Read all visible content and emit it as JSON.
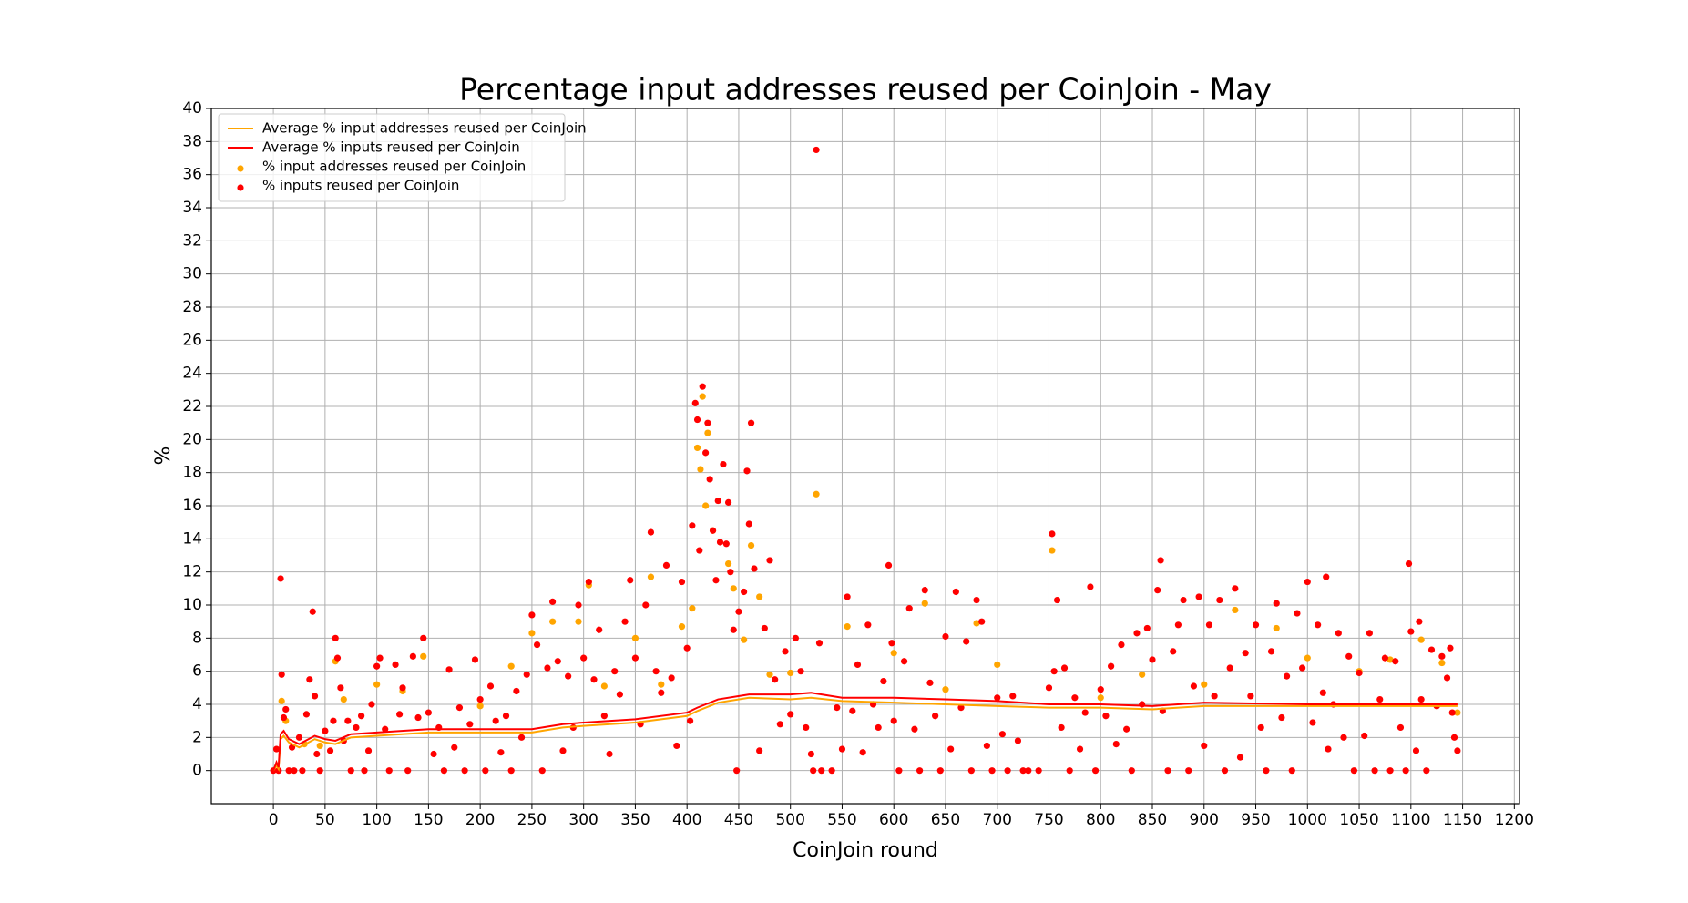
{
  "chart_data": {
    "type": "scatter",
    "title": "Percentage input addresses reused per CoinJoin - May",
    "x_label": "CoinJoin round",
    "y_label": "%",
    "xlim": [
      -60,
      1205
    ],
    "ylim": [
      -2,
      40
    ],
    "xticks": [
      0,
      50,
      100,
      150,
      200,
      250,
      300,
      350,
      400,
      450,
      500,
      550,
      600,
      650,
      700,
      750,
      800,
      850,
      900,
      950,
      1000,
      1050,
      1100,
      1150,
      1200
    ],
    "yticks": [
      0,
      2,
      4,
      6,
      8,
      10,
      12,
      14,
      16,
      18,
      20,
      22,
      24,
      26,
      28,
      30,
      32,
      34,
      36,
      38,
      40
    ],
    "grid": true,
    "legend": "upper-left",
    "series": [
      {
        "name": "Average % input addresses reused per CoinJoin",
        "type": "line",
        "color": "#ffa500",
        "x": [
          0,
          3,
          5,
          7,
          10,
          15,
          25,
          40,
          50,
          60,
          75,
          100,
          150,
          200,
          250,
          280,
          300,
          350,
          400,
          410,
          430,
          460,
          500,
          520,
          550,
          600,
          650,
          700,
          750,
          800,
          850,
          900,
          1000,
          1050,
          1145
        ],
        "values": [
          0,
          0.3,
          0.1,
          1.9,
          2.1,
          1.7,
          1.4,
          1.9,
          1.7,
          1.6,
          2.0,
          2.1,
          2.3,
          2.3,
          2.3,
          2.6,
          2.7,
          2.9,
          3.3,
          3.6,
          4.1,
          4.4,
          4.3,
          4.4,
          4.2,
          4.1,
          4.0,
          3.9,
          3.8,
          3.8,
          3.7,
          3.9,
          3.9,
          3.9,
          3.9
        ]
      },
      {
        "name": "Average % inputs reused per CoinJoin",
        "type": "line",
        "color": "#ff0000",
        "x": [
          0,
          3,
          5,
          7,
          10,
          15,
          25,
          40,
          50,
          60,
          75,
          100,
          150,
          200,
          250,
          280,
          300,
          350,
          400,
          410,
          430,
          460,
          500,
          520,
          550,
          600,
          650,
          700,
          750,
          800,
          850,
          900,
          1000,
          1050,
          1145
        ],
        "values": [
          0,
          0.5,
          0.2,
          2.2,
          2.4,
          1.9,
          1.6,
          2.1,
          1.9,
          1.8,
          2.2,
          2.3,
          2.5,
          2.5,
          2.5,
          2.8,
          2.9,
          3.1,
          3.5,
          3.8,
          4.3,
          4.6,
          4.6,
          4.7,
          4.4,
          4.4,
          4.3,
          4.2,
          4.0,
          4.0,
          3.9,
          4.1,
          4.0,
          4.0,
          4.0
        ]
      },
      {
        "name": "% input addresses reused per CoinJoin",
        "type": "scatter",
        "color": "#ffa500",
        "x": [
          8,
          12,
          30,
          45,
          60,
          68,
          100,
          125,
          145,
          200,
          230,
          250,
          270,
          295,
          305,
          320,
          350,
          365,
          375,
          395,
          405,
          410,
          413,
          415,
          418,
          420,
          425,
          440,
          445,
          455,
          462,
          470,
          480,
          500,
          525,
          555,
          600,
          630,
          650,
          680,
          700,
          753,
          800,
          840,
          900,
          930,
          970,
          1000,
          1050,
          1080,
          1110,
          1130,
          1145
        ],
        "values": [
          4.2,
          3,
          1.6,
          1.5,
          6.6,
          4.3,
          5.2,
          4.8,
          6.9,
          3.9,
          6.3,
          8.3,
          9,
          9,
          11.2,
          5.1,
          8,
          11.7,
          5.2,
          8.7,
          9.8,
          19.5,
          18.2,
          22.6,
          16,
          20.4,
          14.5,
          12.5,
          11,
          7.9,
          13.6,
          10.5,
          5.8,
          5.9,
          16.7,
          8.7,
          7.1,
          10.1,
          4.9,
          8.9,
          6.4,
          13.3,
          4.4,
          5.8,
          5.2,
          9.7,
          8.6,
          6.8,
          6,
          6.7,
          7.9,
          6.5,
          3.5
        ]
      },
      {
        "name": "% inputs reused per CoinJoin",
        "type": "scatter",
        "color": "#ff0000",
        "x": [
          0,
          3,
          5,
          7,
          8,
          10,
          12,
          15,
          18,
          20,
          25,
          28,
          32,
          35,
          38,
          40,
          42,
          45,
          50,
          55,
          58,
          60,
          62,
          65,
          68,
          72,
          75,
          80,
          85,
          88,
          92,
          95,
          100,
          103,
          108,
          112,
          118,
          122,
          125,
          130,
          135,
          140,
          145,
          150,
          155,
          160,
          165,
          170,
          175,
          180,
          185,
          190,
          195,
          200,
          205,
          210,
          215,
          220,
          225,
          230,
          235,
          240,
          245,
          250,
          255,
          260,
          265,
          270,
          275,
          280,
          285,
          290,
          295,
          300,
          305,
          310,
          315,
          320,
          325,
          330,
          335,
          340,
          345,
          350,
          355,
          360,
          365,
          370,
          375,
          380,
          385,
          390,
          395,
          400,
          403,
          405,
          408,
          410,
          412,
          415,
          418,
          420,
          422,
          425,
          428,
          430,
          432,
          435,
          438,
          440,
          442,
          445,
          448,
          450,
          455,
          458,
          460,
          462,
          465,
          470,
          475,
          480,
          485,
          490,
          495,
          500,
          505,
          510,
          515,
          520,
          522,
          525,
          528,
          530,
          540,
          545,
          550,
          555,
          560,
          565,
          570,
          575,
          580,
          585,
          590,
          595,
          598,
          600,
          605,
          610,
          615,
          620,
          625,
          630,
          635,
          640,
          645,
          650,
          655,
          660,
          665,
          670,
          675,
          680,
          685,
          690,
          695,
          700,
          705,
          710,
          715,
          720,
          725,
          730,
          740,
          750,
          753,
          755,
          758,
          762,
          765,
          770,
          775,
          780,
          785,
          790,
          795,
          800,
          805,
          810,
          815,
          820,
          825,
          830,
          835,
          840,
          845,
          850,
          855,
          858,
          860,
          865,
          870,
          875,
          880,
          885,
          890,
          895,
          900,
          905,
          910,
          915,
          920,
          925,
          930,
          935,
          940,
          945,
          950,
          955,
          960,
          965,
          970,
          975,
          980,
          985,
          990,
          995,
          1000,
          1005,
          1010,
          1015,
          1018,
          1020,
          1025,
          1030,
          1035,
          1040,
          1045,
          1050,
          1055,
          1060,
          1065,
          1070,
          1075,
          1080,
          1085,
          1090,
          1095,
          1098,
          1100,
          1105,
          1108,
          1110,
          1115,
          1120,
          1125,
          1130,
          1135,
          1138,
          1140,
          1142,
          1145
        ],
        "values": [
          0,
          1.3,
          0,
          11.6,
          5.8,
          3.2,
          3.7,
          0,
          1.4,
          0,
          2,
          0,
          3.4,
          5.5,
          9.6,
          4.5,
          1,
          0,
          2.4,
          1.2,
          3,
          8,
          6.8,
          5,
          1.8,
          3,
          0,
          2.6,
          3.3,
          0,
          1.2,
          4,
          6.3,
          6.8,
          2.5,
          0,
          6.4,
          3.4,
          5,
          0,
          6.9,
          3.2,
          8,
          3.5,
          1,
          2.6,
          0,
          6.1,
          1.4,
          3.8,
          0,
          2.8,
          6.7,
          4.3,
          0,
          5.1,
          3,
          1.1,
          3.3,
          0,
          4.8,
          2,
          5.8,
          9.4,
          7.6,
          0,
          6.2,
          10.2,
          6.6,
          1.2,
          5.7,
          2.6,
          10,
          6.8,
          11.4,
          5.5,
          8.5,
          3.3,
          1,
          6,
          4.6,
          9,
          11.5,
          6.8,
          2.8,
          10,
          14.4,
          6,
          4.7,
          12.4,
          5.6,
          1.5,
          11.4,
          7.4,
          3,
          14.8,
          22.2,
          21.2,
          13.3,
          23.2,
          19.2,
          21,
          17.6,
          14.5,
          11.5,
          16.3,
          13.8,
          18.5,
          13.7,
          16.2,
          12,
          8.5,
          0,
          9.6,
          10.8,
          18.1,
          14.9,
          21,
          12.2,
          1.2,
          8.6,
          12.7,
          5.5,
          2.8,
          7.2,
          3.4,
          8,
          6,
          2.6,
          1,
          0,
          37.5,
          7.7,
          0,
          0,
          3.8,
          1.3,
          10.5,
          3.6,
          6.4,
          1.1,
          8.8,
          4,
          2.6,
          5.4,
          12.4,
          7.7,
          3,
          0,
          6.6,
          9.8,
          2.5,
          0,
          10.9,
          5.3,
          3.3,
          0,
          8.1,
          1.3,
          10.8,
          3.8,
          7.8,
          0,
          10.3,
          9,
          1.5,
          0,
          4.4,
          2.2,
          0,
          4.5,
          1.8,
          0,
          0,
          0,
          5,
          14.3,
          6,
          10.3,
          2.6,
          6.2,
          0,
          4.4,
          1.3,
          3.5,
          11.1,
          0,
          4.9,
          3.3,
          6.3,
          1.6,
          7.6,
          2.5,
          0,
          8.3,
          4,
          8.6,
          6.7,
          10.9,
          12.7,
          3.6,
          0,
          7.2,
          8.8,
          10.3,
          0,
          5.1,
          10.5,
          1.5,
          8.8,
          4.5,
          10.3,
          0,
          6.2,
          11,
          0.8,
          7.1,
          4.5,
          8.8,
          2.6,
          0,
          7.2,
          10.1,
          3.2,
          5.7,
          0,
          9.5,
          6.2,
          11.4,
          2.9,
          8.8,
          4.7,
          11.7,
          1.3,
          4,
          8.3,
          2,
          6.9,
          0,
          5.9,
          2.1,
          8.3,
          0,
          4.3,
          6.8,
          0,
          6.6,
          2.6,
          0,
          12.5,
          8.4,
          1.2,
          9,
          4.3,
          0,
          7.3,
          3.9,
          6.9,
          5.6,
          7.4,
          3.5,
          2,
          1.2
        ]
      }
    ]
  }
}
